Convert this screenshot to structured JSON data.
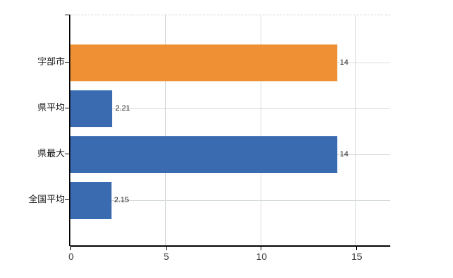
{
  "chart_data": {
    "type": "bar",
    "orientation": "horizontal",
    "title": "",
    "xlabel": "",
    "ylabel": "",
    "categories": [
      "宇部市",
      "県平均",
      "県最大",
      "全国平均"
    ],
    "values": [
      14,
      2.21,
      14,
      2.15
    ],
    "value_labels": [
      "14",
      "2.21",
      "14",
      "2.15"
    ],
    "bar_colors": [
      "#EF9034",
      "#3A6BB1",
      "#3A6BB1",
      "#3A6BB1"
    ],
    "x_ticks": [
      0,
      5,
      10,
      15
    ],
    "x_tick_labels": [
      "0",
      "5",
      "10",
      "15"
    ],
    "xlim": [
      0,
      16.8
    ],
    "grid": "vertical gridlines at x ticks plus horizontal gridline at each category center",
    "legend": "none",
    "plot_border_top": "dashed",
    "colors": {
      "background": "#FFFFFF",
      "axis": "#000000",
      "gridline": "#D6DCD6",
      "top_border": "#D3D3D3",
      "value_label_text": "#222222",
      "category_label_text": "#111111",
      "tick_label_text": "#333333"
    }
  }
}
